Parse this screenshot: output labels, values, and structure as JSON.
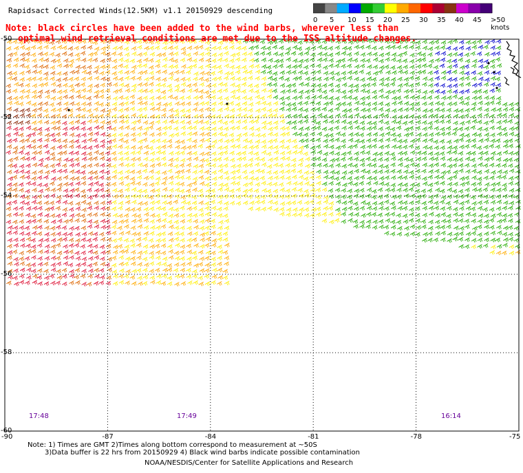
{
  "title": "Rapidsact Corrected Winds(12.5KM) v1.1 20150929 descending",
  "notes": {
    "line1": "Note: black circles have been added to the wind barbs, wherever less than",
    "line2": "optimal wind retrieval conditions are met due to the ISS altitude changes."
  },
  "colorbar": {
    "labels": [
      "0",
      "5",
      "10",
      "15",
      "20",
      "25",
      "30",
      "35",
      "40",
      "45",
      ">50 knots"
    ],
    "colors": [
      "#444444",
      "#888888",
      "#00aaff",
      "#0000ff",
      "#00aa00",
      "#33cc33",
      "#ffff00",
      "#ffaa00",
      "#ff6600",
      "#ff0000",
      "#aa0033",
      "#883311",
      "#cc00cc",
      "#8800aa",
      "#440077"
    ]
  },
  "axes": {
    "lat_labels": [
      "-50",
      "-52",
      "-54",
      "-56",
      "-58",
      "-60"
    ],
    "lon_labels": [
      "-90",
      "-87",
      "-84",
      "-81",
      "-78",
      "-75"
    ],
    "lat_range": [
      -60,
      -50
    ],
    "lon_range": [
      -90,
      -75
    ]
  },
  "times": [
    "17:48",
    "17:49",
    "16:14"
  ],
  "footnotes": {
    "line1": "Note: 1) Times are GMT 2)Times along bottom correspond to measurement at ~50S",
    "line2": "3)Data buffer is 22 hrs from 20150929 4) Black wind barbs indicate possible contamination"
  },
  "credit": "NOAA/NESDIS/Center for Satellite Applications and Research",
  "wind_colors": {
    "green": "#22aa00",
    "yellow": "#ffee00",
    "orange": "#ffaa00",
    "dark_orange": "#dd6600",
    "red": "#dd1133",
    "dark_red": "#882200",
    "blue": "#0000cc"
  }
}
